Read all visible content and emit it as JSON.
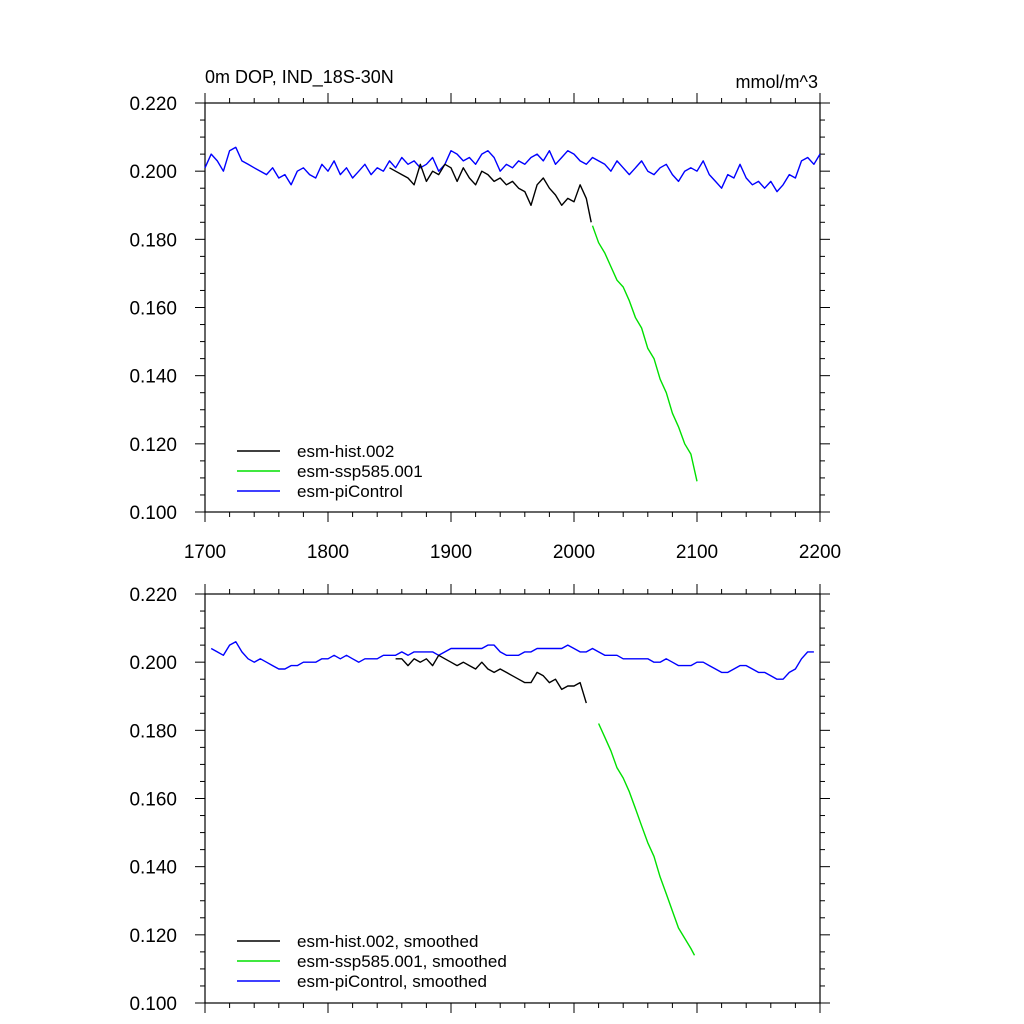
{
  "chart_data": [
    {
      "type": "line",
      "title": "0m DOP, IND_18S-30N",
      "units": "mmol/m^3",
      "xlim": [
        1700,
        2200
      ],
      "ylim": [
        0.1,
        0.22
      ],
      "xticks": [
        "1700",
        "1800",
        "1900",
        "2000",
        "2100",
        "2200"
      ],
      "yticks": [
        "0.100",
        "0.120",
        "0.140",
        "0.160",
        "0.180",
        "0.200",
        "0.220"
      ],
      "grid": false,
      "legend_position": "bottom-left",
      "series": [
        {
          "name": "esm-hist.002",
          "color": "#000000",
          "x": [
            1850,
            1855,
            1860,
            1865,
            1870,
            1875,
            1880,
            1885,
            1890,
            1895,
            1900,
            1905,
            1910,
            1915,
            1920,
            1925,
            1930,
            1935,
            1940,
            1945,
            1950,
            1955,
            1960,
            1965,
            1970,
            1975,
            1980,
            1985,
            1990,
            1995,
            2000,
            2005,
            2010,
            2014
          ],
          "y": [
            0.201,
            0.2,
            0.199,
            0.198,
            0.196,
            0.202,
            0.197,
            0.2,
            0.199,
            0.202,
            0.201,
            0.197,
            0.201,
            0.198,
            0.196,
            0.2,
            0.199,
            0.197,
            0.198,
            0.196,
            0.197,
            0.195,
            0.194,
            0.19,
            0.196,
            0.198,
            0.195,
            0.193,
            0.19,
            0.192,
            0.191,
            0.196,
            0.192,
            0.185
          ]
        },
        {
          "name": "esm-ssp585.001",
          "color": "#00e000",
          "x": [
            2015,
            2020,
            2025,
            2030,
            2035,
            2040,
            2045,
            2050,
            2055,
            2060,
            2065,
            2070,
            2075,
            2080,
            2085,
            2090,
            2095,
            2100
          ],
          "y": [
            0.184,
            0.179,
            0.176,
            0.172,
            0.168,
            0.166,
            0.162,
            0.157,
            0.154,
            0.148,
            0.145,
            0.139,
            0.135,
            0.129,
            0.125,
            0.12,
            0.117,
            0.109
          ]
        },
        {
          "name": "esm-piControl",
          "color": "#0000ff",
          "x": [
            1700,
            1705,
            1710,
            1715,
            1720,
            1725,
            1730,
            1735,
            1740,
            1745,
            1750,
            1755,
            1760,
            1765,
            1770,
            1775,
            1780,
            1785,
            1790,
            1795,
            1800,
            1805,
            1810,
            1815,
            1820,
            1825,
            1830,
            1835,
            1840,
            1845,
            1850,
            1855,
            1860,
            1865,
            1870,
            1875,
            1880,
            1885,
            1890,
            1895,
            1900,
            1905,
            1910,
            1915,
            1920,
            1925,
            1930,
            1935,
            1940,
            1945,
            1950,
            1955,
            1960,
            1965,
            1970,
            1975,
            1980,
            1985,
            1990,
            1995,
            2000,
            2005,
            2010,
            2015,
            2020,
            2025,
            2030,
            2035,
            2040,
            2045,
            2050,
            2055,
            2060,
            2065,
            2070,
            2075,
            2080,
            2085,
            2090,
            2095,
            2100,
            2105,
            2110,
            2115,
            2120,
            2125,
            2130,
            2135,
            2140,
            2145,
            2150,
            2155,
            2160,
            2165,
            2170,
            2175,
            2180,
            2185,
            2190,
            2195,
            2200
          ],
          "y": [
            0.201,
            0.205,
            0.203,
            0.2,
            0.206,
            0.207,
            0.203,
            0.202,
            0.201,
            0.2,
            0.199,
            0.201,
            0.198,
            0.199,
            0.196,
            0.2,
            0.201,
            0.199,
            0.198,
            0.202,
            0.2,
            0.203,
            0.199,
            0.201,
            0.198,
            0.2,
            0.202,
            0.199,
            0.201,
            0.2,
            0.203,
            0.201,
            0.204,
            0.202,
            0.203,
            0.201,
            0.202,
            0.204,
            0.2,
            0.202,
            0.206,
            0.205,
            0.203,
            0.204,
            0.202,
            0.205,
            0.206,
            0.204,
            0.2,
            0.202,
            0.201,
            0.203,
            0.202,
            0.204,
            0.205,
            0.203,
            0.206,
            0.202,
            0.204,
            0.206,
            0.205,
            0.203,
            0.202,
            0.204,
            0.203,
            0.202,
            0.2,
            0.203,
            0.201,
            0.199,
            0.201,
            0.203,
            0.2,
            0.199,
            0.201,
            0.202,
            0.199,
            0.197,
            0.2,
            0.201,
            0.2,
            0.203,
            0.199,
            0.197,
            0.195,
            0.199,
            0.198,
            0.202,
            0.198,
            0.196,
            0.197,
            0.195,
            0.197,
            0.194,
            0.196,
            0.199,
            0.198,
            0.203,
            0.204,
            0.202,
            0.205
          ]
        }
      ]
    },
    {
      "type": "line",
      "title": "",
      "units": "",
      "xlim": [
        1700,
        2200
      ],
      "ylim": [
        0.1,
        0.22
      ],
      "xticks": [],
      "yticks": [
        "0.100",
        "0.120",
        "0.140",
        "0.160",
        "0.180",
        "0.200",
        "0.220"
      ],
      "grid": false,
      "legend_position": "bottom-left",
      "series": [
        {
          "name": "esm-hist.002, smoothed",
          "color": "#000000",
          "x": [
            1855,
            1860,
            1865,
            1870,
            1875,
            1880,
            1885,
            1890,
            1895,
            1900,
            1905,
            1910,
            1915,
            1920,
            1925,
            1930,
            1935,
            1940,
            1945,
            1950,
            1955,
            1960,
            1965,
            1970,
            1975,
            1980,
            1985,
            1990,
            1995,
            2000,
            2005,
            2010
          ],
          "y": [
            0.201,
            0.201,
            0.199,
            0.201,
            0.2,
            0.201,
            0.199,
            0.202,
            0.201,
            0.2,
            0.199,
            0.2,
            0.199,
            0.198,
            0.2,
            0.198,
            0.197,
            0.198,
            0.197,
            0.196,
            0.195,
            0.194,
            0.194,
            0.197,
            0.196,
            0.194,
            0.195,
            0.192,
            0.193,
            0.193,
            0.194,
            0.188
          ]
        },
        {
          "name": "esm-ssp585.001, smoothed",
          "color": "#00e000",
          "x": [
            2020,
            2025,
            2030,
            2035,
            2040,
            2045,
            2050,
            2055,
            2060,
            2065,
            2070,
            2075,
            2080,
            2085,
            2090,
            2095,
            2098
          ],
          "y": [
            0.182,
            0.178,
            0.174,
            0.169,
            0.166,
            0.162,
            0.157,
            0.152,
            0.147,
            0.143,
            0.137,
            0.132,
            0.127,
            0.122,
            0.119,
            0.116,
            0.114
          ]
        },
        {
          "name": "esm-piControl, smoothed",
          "color": "#0000ff",
          "x": [
            1705,
            1710,
            1715,
            1720,
            1725,
            1730,
            1735,
            1740,
            1745,
            1750,
            1755,
            1760,
            1765,
            1770,
            1775,
            1780,
            1785,
            1790,
            1795,
            1800,
            1805,
            1810,
            1815,
            1820,
            1825,
            1830,
            1835,
            1840,
            1845,
            1850,
            1855,
            1860,
            1865,
            1870,
            1875,
            1880,
            1885,
            1890,
            1895,
            1900,
            1905,
            1910,
            1915,
            1920,
            1925,
            1930,
            1935,
            1940,
            1945,
            1950,
            1955,
            1960,
            1965,
            1970,
            1975,
            1980,
            1985,
            1990,
            1995,
            2000,
            2005,
            2010,
            2015,
            2020,
            2025,
            2030,
            2035,
            2040,
            2045,
            2050,
            2055,
            2060,
            2065,
            2070,
            2075,
            2080,
            2085,
            2090,
            2095,
            2100,
            2105,
            2110,
            2115,
            2120,
            2125,
            2130,
            2135,
            2140,
            2145,
            2150,
            2155,
            2160,
            2165,
            2170,
            2175,
            2180,
            2185,
            2190,
            2195
          ],
          "y": [
            0.204,
            0.203,
            0.202,
            0.205,
            0.206,
            0.203,
            0.201,
            0.2,
            0.201,
            0.2,
            0.199,
            0.198,
            0.198,
            0.199,
            0.199,
            0.2,
            0.2,
            0.2,
            0.201,
            0.201,
            0.202,
            0.201,
            0.202,
            0.201,
            0.2,
            0.201,
            0.201,
            0.201,
            0.202,
            0.202,
            0.202,
            0.203,
            0.202,
            0.203,
            0.203,
            0.203,
            0.203,
            0.202,
            0.203,
            0.204,
            0.204,
            0.204,
            0.204,
            0.204,
            0.204,
            0.205,
            0.205,
            0.203,
            0.202,
            0.202,
            0.202,
            0.203,
            0.203,
            0.204,
            0.204,
            0.204,
            0.204,
            0.204,
            0.205,
            0.204,
            0.203,
            0.203,
            0.204,
            0.203,
            0.202,
            0.202,
            0.202,
            0.201,
            0.201,
            0.201,
            0.201,
            0.201,
            0.2,
            0.2,
            0.201,
            0.2,
            0.199,
            0.199,
            0.199,
            0.2,
            0.2,
            0.199,
            0.198,
            0.197,
            0.197,
            0.198,
            0.199,
            0.199,
            0.198,
            0.197,
            0.197,
            0.196,
            0.195,
            0.195,
            0.197,
            0.198,
            0.201,
            0.203,
            0.203
          ]
        }
      ]
    }
  ]
}
